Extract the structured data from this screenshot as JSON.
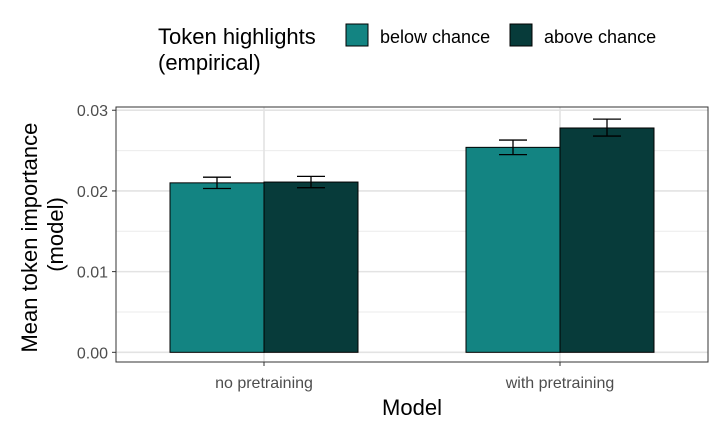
{
  "chart_data": {
    "type": "bar",
    "title": "",
    "xlabel": "Model",
    "ylabel_lines": [
      "Mean token importance",
      "(model)"
    ],
    "categories": [
      "no pretraining",
      "with pretraining"
    ],
    "legend": {
      "title_lines": [
        "Token highlights",
        "(empirical)"
      ],
      "placement": "top"
    },
    "series": [
      {
        "name": "below chance",
        "color": "#138482",
        "values": [
          0.021,
          0.0254
        ],
        "error_low": [
          0.0203,
          0.0245
        ],
        "error_high": [
          0.0217,
          0.0263
        ]
      },
      {
        "name": "above chance",
        "color": "#073b3a",
        "values": [
          0.0211,
          0.0278
        ],
        "error_low": [
          0.0204,
          0.0268
        ],
        "error_high": [
          0.0218,
          0.0289
        ]
      }
    ],
    "ylim": [
      -0.0012,
      0.0304
    ],
    "yticks": [
      0.0,
      0.01,
      0.02,
      0.03
    ],
    "ytick_labels": [
      "0.00",
      "0.01",
      "0.02",
      "0.03"
    ],
    "grid": true
  }
}
